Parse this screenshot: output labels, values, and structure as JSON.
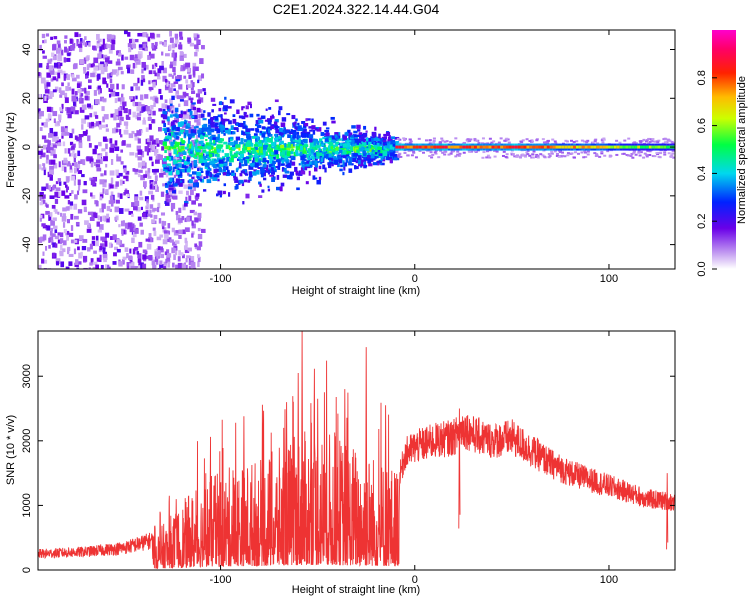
{
  "title": "C2E1.2024.322.14.44.G04",
  "colors": {
    "snr_line": "#ee3333",
    "axis": "#000000",
    "background": "#ffffff"
  },
  "chart_data": [
    {
      "type": "heatmap",
      "xlabel": "Height of straight line (km)",
      "ylabel": "Frequency (Hz)",
      "xlim": [
        -194,
        134
      ],
      "ylim": [
        -50,
        48
      ],
      "xticks": [
        -100,
        0,
        100
      ],
      "xtick_labels": [
        "-100",
        "0",
        "100"
      ],
      "yticks": [
        -40,
        -20,
        0,
        20,
        40
      ],
      "ytick_labels": [
        "-40",
        "-20",
        "0",
        "20",
        "40"
      ],
      "colorbar": {
        "label": "Normalized spectral amplitude",
        "range": [
          0.0,
          1.0
        ],
        "ticks": [
          0.0,
          0.2,
          0.4,
          0.6,
          0.8
        ],
        "tick_labels": [
          "0.0",
          "0.2",
          "0.4",
          "0.6",
          "0.8"
        ],
        "colormap": "rainbow (white-violet-blue-cyan-green-yellow-red-magenta)"
      },
      "features": {
        "broadband_noise_x_range": [
          -194,
          -130
        ],
        "turbulent_band_x_range": [
          -130,
          -10
        ],
        "narrow_line_x_range": [
          -10,
          134
        ],
        "narrow_line_frequency_hz": 0,
        "peak_amplitude_x_range": [
          -10,
          60
        ]
      }
    },
    {
      "type": "line",
      "xlabel": "Height of straight line (km)",
      "ylabel": "SNR (10 * v/v)",
      "xlim": [
        -194,
        134
      ],
      "ylim": [
        0,
        3700
      ],
      "xticks": [
        -100,
        0,
        100
      ],
      "xtick_labels": [
        "-100",
        "0",
        "100"
      ],
      "yticks": [
        0,
        1000,
        2000,
        3000
      ],
      "ytick_labels": [
        "0",
        "1000",
        "2000",
        "3000"
      ],
      "series": [
        {
          "envelope_x": [
            -194,
            -170,
            -150,
            -130,
            -120,
            -110,
            -100,
            -90,
            -80,
            -70,
            -60,
            -50,
            -40,
            -30,
            -20,
            -10,
            -5,
            0,
            10,
            20,
            25,
            30,
            40,
            50,
            60,
            70,
            80,
            90,
            100,
            110,
            120,
            134
          ],
          "envelope_y": [
            250,
            280,
            340,
            500,
            750,
            1000,
            1100,
            1200,
            1250,
            1350,
            1500,
            1600,
            1500,
            1400,
            1300,
            1150,
            1800,
            1900,
            2000,
            2050,
            2200,
            2100,
            2000,
            2050,
            1850,
            1650,
            1500,
            1400,
            1300,
            1200,
            1100,
            1050
          ],
          "spikes": [
            {
              "x": -58,
              "y": 3700
            },
            {
              "x": -60,
              "y": 3050
            },
            {
              "x": -36,
              "y": 2800
            },
            {
              "x": -25,
              "y": 3450
            },
            {
              "x": -50,
              "y": 2650
            },
            {
              "x": -88,
              "y": 2380
            },
            {
              "x": -66,
              "y": 2600
            },
            {
              "x": -15,
              "y": 2550
            },
            {
              "x": 23,
              "y": 2500
            },
            {
              "x": 130,
              "y": 1500
            }
          ]
        }
      ]
    }
  ]
}
